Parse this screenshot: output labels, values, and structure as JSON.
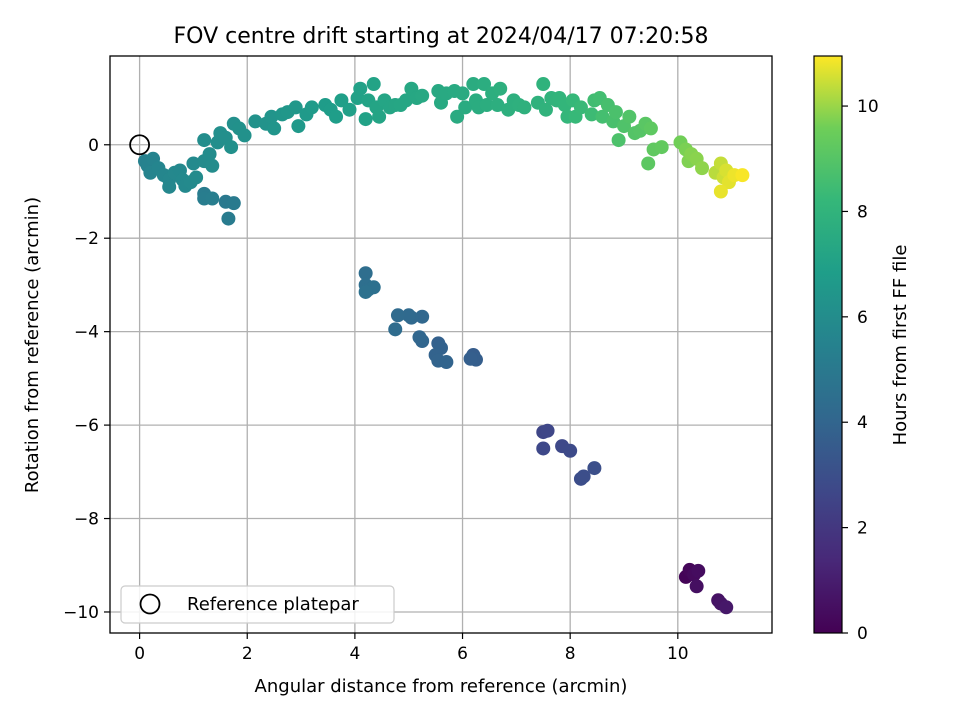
{
  "chart_data": {
    "type": "scatter",
    "title": "FOV centre drift starting at 2024/04/17 07:20:58",
    "xlabel": "Angular distance from reference (arcmin)",
    "ylabel": "Rotation from reference (arcmin)",
    "xlim": [
      -0.55,
      11.75
    ],
    "ylim": [
      -10.45,
      1.9
    ],
    "x_ticks": [
      0,
      2,
      4,
      6,
      8,
      10
    ],
    "x_tick_labels": [
      "0",
      "2",
      "4",
      "6",
      "8",
      "10"
    ],
    "y_ticks": [
      0,
      -2,
      -4,
      -6,
      -8,
      -10
    ],
    "y_tick_labels": [
      "0",
      "−2",
      "−4",
      "−6",
      "−8",
      "−10"
    ],
    "grid": true,
    "colormap": "viridis",
    "colorbar": {
      "label": "Hours from first FF file",
      "range": [
        0,
        10.95
      ],
      "ticks": [
        0,
        2,
        4,
        6,
        8,
        10
      ],
      "tick_labels": [
        "0",
        "2",
        "4",
        "6",
        "8",
        "10"
      ]
    },
    "legend": {
      "position": "lower-left",
      "entries": [
        {
          "label": "Reference platepar",
          "marker": "open-circle"
        }
      ]
    },
    "reference_point": {
      "x": 0,
      "y": 0
    },
    "points": [
      {
        "x": 10.15,
        "y": -9.25,
        "h": 0.1
      },
      {
        "x": 10.22,
        "y": -9.1,
        "h": 0.2
      },
      {
        "x": 10.3,
        "y": -9.2,
        "h": 0.3
      },
      {
        "x": 10.38,
        "y": -9.12,
        "h": 0.4
      },
      {
        "x": 10.35,
        "y": -9.45,
        "h": 0.5
      },
      {
        "x": 10.75,
        "y": -9.75,
        "h": 0.6
      },
      {
        "x": 10.8,
        "y": -9.82,
        "h": 0.7
      },
      {
        "x": 10.9,
        "y": -9.9,
        "h": 0.8
      },
      {
        "x": 7.5,
        "y": -6.15,
        "h": 2.6
      },
      {
        "x": 7.58,
        "y": -6.12,
        "h": 2.65
      },
      {
        "x": 7.5,
        "y": -6.5,
        "h": 2.7
      },
      {
        "x": 7.85,
        "y": -6.45,
        "h": 2.75
      },
      {
        "x": 8.0,
        "y": -6.55,
        "h": 2.8
      },
      {
        "x": 8.2,
        "y": -7.15,
        "h": 2.9
      },
      {
        "x": 8.25,
        "y": -7.1,
        "h": 2.95
      },
      {
        "x": 8.45,
        "y": -6.92,
        "h": 3.0
      },
      {
        "x": 6.2,
        "y": -4.5,
        "h": 3.6
      },
      {
        "x": 6.25,
        "y": -4.6,
        "h": 3.65
      },
      {
        "x": 6.15,
        "y": -4.58,
        "h": 3.7
      },
      {
        "x": 5.55,
        "y": -4.25,
        "h": 3.8
      },
      {
        "x": 5.6,
        "y": -4.35,
        "h": 3.85
      },
      {
        "x": 5.5,
        "y": -4.5,
        "h": 3.9
      },
      {
        "x": 5.55,
        "y": -4.62,
        "h": 3.92
      },
      {
        "x": 5.7,
        "y": -4.65,
        "h": 3.95
      },
      {
        "x": 5.25,
        "y": -4.2,
        "h": 4.0
      },
      {
        "x": 5.2,
        "y": -4.12,
        "h": 4.05
      },
      {
        "x": 5.25,
        "y": -3.68,
        "h": 4.1
      },
      {
        "x": 5.05,
        "y": -3.7,
        "h": 4.15
      },
      {
        "x": 5.0,
        "y": -3.65,
        "h": 4.2
      },
      {
        "x": 4.8,
        "y": -3.65,
        "h": 4.25
      },
      {
        "x": 4.75,
        "y": -3.95,
        "h": 4.3
      },
      {
        "x": 4.2,
        "y": -2.75,
        "h": 4.4
      },
      {
        "x": 4.2,
        "y": -3.0,
        "h": 4.45
      },
      {
        "x": 4.25,
        "y": -3.1,
        "h": 4.5
      },
      {
        "x": 4.35,
        "y": -3.05,
        "h": 4.55
      },
      {
        "x": 4.2,
        "y": -3.15,
        "h": 4.6
      },
      {
        "x": 1.6,
        "y": -1.22,
        "h": 5.0
      },
      {
        "x": 1.75,
        "y": -1.25,
        "h": 5.05
      },
      {
        "x": 1.65,
        "y": -1.58,
        "h": 5.1
      },
      {
        "x": 1.2,
        "y": -1.05,
        "h": 5.15
      },
      {
        "x": 1.2,
        "y": -1.15,
        "h": 5.2
      },
      {
        "x": 1.35,
        "y": -1.15,
        "h": 5.25
      },
      {
        "x": 0.1,
        "y": -0.35,
        "h": 5.4
      },
      {
        "x": 0.15,
        "y": -0.45,
        "h": 5.45
      },
      {
        "x": 0.25,
        "y": -0.3,
        "h": 5.5
      },
      {
        "x": 0.2,
        "y": -0.6,
        "h": 5.55
      },
      {
        "x": 0.35,
        "y": -0.5,
        "h": 5.6
      },
      {
        "x": 0.45,
        "y": -0.65,
        "h": 5.65
      },
      {
        "x": 0.55,
        "y": -0.75,
        "h": 5.7
      },
      {
        "x": 0.55,
        "y": -0.9,
        "h": 5.72
      },
      {
        "x": 0.65,
        "y": -0.6,
        "h": 5.75
      },
      {
        "x": 0.75,
        "y": -0.55,
        "h": 5.78
      },
      {
        "x": 0.8,
        "y": -0.75,
        "h": 5.8
      },
      {
        "x": 0.85,
        "y": -0.88,
        "h": 5.82
      },
      {
        "x": 0.95,
        "y": -0.8,
        "h": 5.85
      },
      {
        "x": 1.0,
        "y": -0.4,
        "h": 5.88
      },
      {
        "x": 1.05,
        "y": -0.7,
        "h": 5.9
      },
      {
        "x": 1.2,
        "y": -0.35,
        "h": 5.92
      },
      {
        "x": 1.35,
        "y": -0.45,
        "h": 5.95
      },
      {
        "x": 1.3,
        "y": -0.2,
        "h": 5.98
      },
      {
        "x": 1.2,
        "y": 0.1,
        "h": 6.0
      },
      {
        "x": 1.45,
        "y": 0.05,
        "h": 6.05
      },
      {
        "x": 1.5,
        "y": 0.25,
        "h": 6.1
      },
      {
        "x": 1.6,
        "y": 0.15,
        "h": 6.12
      },
      {
        "x": 1.75,
        "y": 0.45,
        "h": 6.15
      },
      {
        "x": 1.7,
        "y": -0.05,
        "h": 6.18
      },
      {
        "x": 1.85,
        "y": 0.35,
        "h": 6.2
      },
      {
        "x": 1.95,
        "y": 0.2,
        "h": 6.22
      },
      {
        "x": 2.15,
        "y": 0.5,
        "h": 6.25
      },
      {
        "x": 2.35,
        "y": 0.45,
        "h": 6.3
      },
      {
        "x": 2.45,
        "y": 0.6,
        "h": 6.35
      },
      {
        "x": 2.5,
        "y": 0.35,
        "h": 6.4
      },
      {
        "x": 2.65,
        "y": 0.65,
        "h": 6.45
      },
      {
        "x": 2.75,
        "y": 0.7,
        "h": 6.5
      },
      {
        "x": 2.9,
        "y": 0.8,
        "h": 6.55
      },
      {
        "x": 2.95,
        "y": 0.4,
        "h": 6.6
      },
      {
        "x": 3.1,
        "y": 0.65,
        "h": 6.65
      },
      {
        "x": 3.2,
        "y": 0.8,
        "h": 6.7
      },
      {
        "x": 3.45,
        "y": 0.85,
        "h": 6.75
      },
      {
        "x": 3.55,
        "y": 0.75,
        "h": 6.8
      },
      {
        "x": 3.65,
        "y": 0.6,
        "h": 6.85
      },
      {
        "x": 3.75,
        "y": 0.95,
        "h": 6.9
      },
      {
        "x": 3.9,
        "y": 0.75,
        "h": 6.95
      },
      {
        "x": 4.05,
        "y": 1.0,
        "h": 7.0
      },
      {
        "x": 4.1,
        "y": 1.2,
        "h": 7.02
      },
      {
        "x": 4.2,
        "y": 0.55,
        "h": 7.05
      },
      {
        "x": 4.25,
        "y": 0.95,
        "h": 7.1
      },
      {
        "x": 4.35,
        "y": 1.3,
        "h": 7.12
      },
      {
        "x": 4.4,
        "y": 0.8,
        "h": 7.15
      },
      {
        "x": 4.45,
        "y": 0.6,
        "h": 7.18
      },
      {
        "x": 4.55,
        "y": 0.95,
        "h": 7.2
      },
      {
        "x": 4.65,
        "y": 0.8,
        "h": 7.22
      },
      {
        "x": 4.75,
        "y": 0.85,
        "h": 7.25
      },
      {
        "x": 4.85,
        "y": 0.85,
        "h": 7.28
      },
      {
        "x": 4.95,
        "y": 0.95,
        "h": 7.3
      },
      {
        "x": 5.05,
        "y": 1.2,
        "h": 7.32
      },
      {
        "x": 5.15,
        "y": 1.0,
        "h": 7.35
      },
      {
        "x": 5.25,
        "y": 1.05,
        "h": 7.38
      },
      {
        "x": 5.55,
        "y": 1.15,
        "h": 7.4
      },
      {
        "x": 5.6,
        "y": 0.9,
        "h": 7.42
      },
      {
        "x": 5.7,
        "y": 1.1,
        "h": 7.45
      },
      {
        "x": 5.85,
        "y": 1.15,
        "h": 7.48
      },
      {
        "x": 5.9,
        "y": 0.6,
        "h": 7.5
      },
      {
        "x": 6.0,
        "y": 1.1,
        "h": 7.52
      },
      {
        "x": 6.05,
        "y": 0.8,
        "h": 7.55
      },
      {
        "x": 6.2,
        "y": 1.3,
        "h": 7.58
      },
      {
        "x": 6.25,
        "y": 0.95,
        "h": 7.6
      },
      {
        "x": 6.3,
        "y": 0.8,
        "h": 7.62
      },
      {
        "x": 6.4,
        "y": 1.3,
        "h": 7.65
      },
      {
        "x": 6.45,
        "y": 0.85,
        "h": 7.68
      },
      {
        "x": 6.55,
        "y": 1.1,
        "h": 7.7
      },
      {
        "x": 6.65,
        "y": 0.85,
        "h": 7.72
      },
      {
        "x": 6.7,
        "y": 1.2,
        "h": 7.75
      },
      {
        "x": 6.85,
        "y": 0.75,
        "h": 7.78
      },
      {
        "x": 6.95,
        "y": 0.95,
        "h": 7.8
      },
      {
        "x": 7.05,
        "y": 0.85,
        "h": 7.82
      },
      {
        "x": 7.15,
        "y": 0.8,
        "h": 7.85
      },
      {
        "x": 7.4,
        "y": 0.9,
        "h": 7.9
      },
      {
        "x": 7.5,
        "y": 1.3,
        "h": 7.92
      },
      {
        "x": 7.55,
        "y": 0.75,
        "h": 7.95
      },
      {
        "x": 7.65,
        "y": 1.0,
        "h": 7.98
      },
      {
        "x": 7.75,
        "y": 0.95,
        "h": 8.0
      },
      {
        "x": 7.8,
        "y": 1.0,
        "h": 8.05
      },
      {
        "x": 7.9,
        "y": 0.85,
        "h": 8.1
      },
      {
        "x": 7.95,
        "y": 0.6,
        "h": 8.15
      },
      {
        "x": 8.05,
        "y": 0.95,
        "h": 8.2
      },
      {
        "x": 8.1,
        "y": 0.6,
        "h": 8.25
      },
      {
        "x": 8.2,
        "y": 0.8,
        "h": 8.3
      },
      {
        "x": 8.4,
        "y": 0.65,
        "h": 8.4
      },
      {
        "x": 8.45,
        "y": 0.95,
        "h": 8.5
      },
      {
        "x": 8.55,
        "y": 1.0,
        "h": 8.55
      },
      {
        "x": 8.6,
        "y": 0.6,
        "h": 8.6
      },
      {
        "x": 8.7,
        "y": 0.85,
        "h": 8.65
      },
      {
        "x": 8.8,
        "y": 0.5,
        "h": 8.7
      },
      {
        "x": 8.85,
        "y": 0.7,
        "h": 8.75
      },
      {
        "x": 8.9,
        "y": 0.1,
        "h": 8.8
      },
      {
        "x": 9.0,
        "y": 0.4,
        "h": 8.85
      },
      {
        "x": 9.1,
        "y": 0.6,
        "h": 8.9
      },
      {
        "x": 9.2,
        "y": 0.25,
        "h": 8.95
      },
      {
        "x": 9.3,
        "y": 0.3,
        "h": 9.0
      },
      {
        "x": 9.4,
        "y": 0.45,
        "h": 9.1
      },
      {
        "x": 9.45,
        "y": -0.4,
        "h": 9.15
      },
      {
        "x": 9.5,
        "y": 0.35,
        "h": 9.2
      },
      {
        "x": 9.55,
        "y": -0.1,
        "h": 9.25
      },
      {
        "x": 9.7,
        "y": -0.05,
        "h": 9.3
      },
      {
        "x": 10.05,
        "y": 0.05,
        "h": 9.6
      },
      {
        "x": 10.15,
        "y": -0.1,
        "h": 9.7
      },
      {
        "x": 10.2,
        "y": -0.35,
        "h": 9.75
      },
      {
        "x": 10.25,
        "y": -0.2,
        "h": 9.8
      },
      {
        "x": 10.35,
        "y": -0.3,
        "h": 9.85
      },
      {
        "x": 10.45,
        "y": -0.5,
        "h": 9.9
      },
      {
        "x": 10.7,
        "y": -0.6,
        "h": 10.3
      },
      {
        "x": 10.8,
        "y": -0.4,
        "h": 10.4
      },
      {
        "x": 10.85,
        "y": -0.7,
        "h": 10.5
      },
      {
        "x": 10.9,
        "y": -0.55,
        "h": 10.6
      },
      {
        "x": 10.95,
        "y": -0.8,
        "h": 10.7
      },
      {
        "x": 10.8,
        "y": -1.0,
        "h": 10.75
      },
      {
        "x": 11.05,
        "y": -0.65,
        "h": 10.8
      },
      {
        "x": 11.2,
        "y": -0.65,
        "h": 10.9
      }
    ]
  }
}
